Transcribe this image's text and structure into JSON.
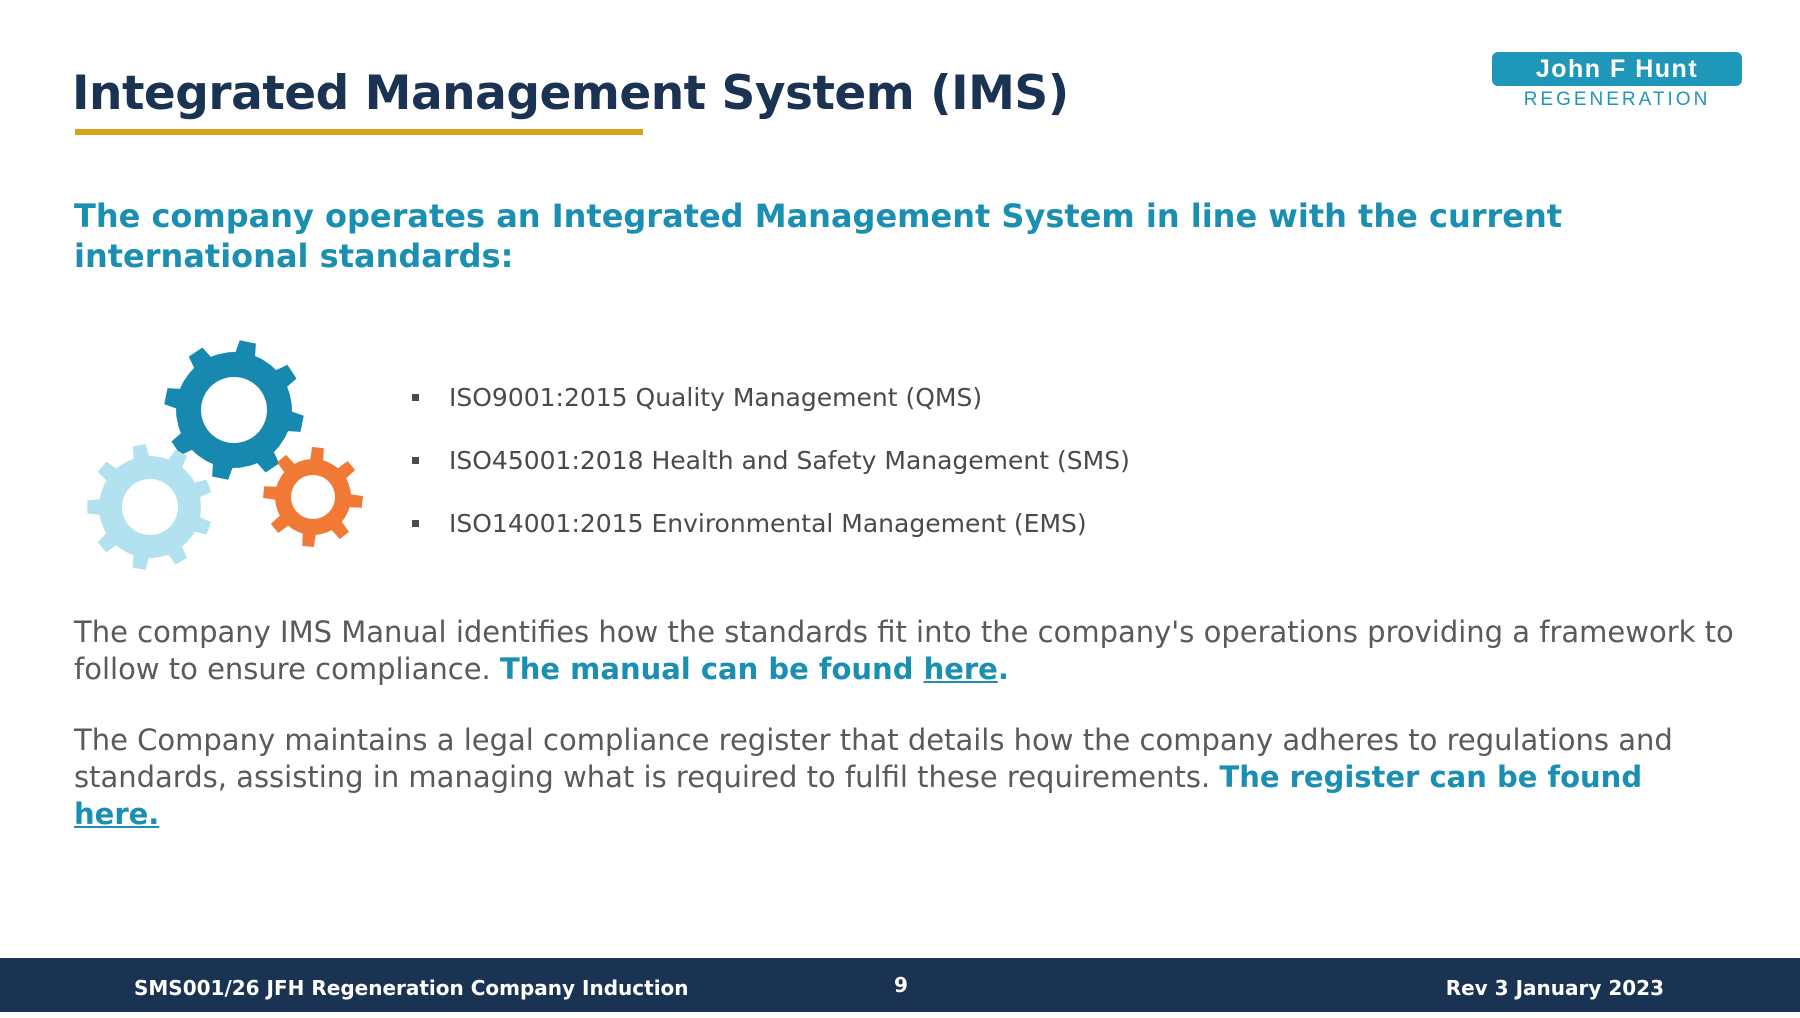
{
  "slide": {
    "title": "Integrated Management System (IMS)",
    "intro": "The company operates an Integrated Management System in line with the current international standards:"
  },
  "logo": {
    "name": "John F Hunt",
    "tagline": "REGENERATION"
  },
  "standards": [
    "ISO9001:2015 Quality Management (QMS)",
    "ISO45001:2018 Health and Safety Management (SMS)",
    "ISO14001:2015 Environmental Management (EMS)"
  ],
  "manual": {
    "text": "The company IMS Manual identifies how the standards fit into the company's operations providing a framework to follow to ensure compliance. ",
    "emphasis": "The manual can be found ",
    "link": "here",
    "end": "."
  },
  "register": {
    "text": "The Company maintains a legal compliance register that details how the company adheres to regulations and standards, assisting in managing what is required to fulfil these requirements. ",
    "emphasis": "The register can be found ",
    "link": "here."
  },
  "footer": {
    "document": "SMS001/26 JFH Regeneration Company Induction",
    "page": "9",
    "revision": "Rev 3 January 2023"
  },
  "colors": {
    "navy": "#1a3352",
    "teal": "#1a8fb2",
    "gold": "#d8a31a",
    "gear_dark": "#1789b0",
    "gear_light": "#b2e2ef",
    "gear_orange": "#f07a35"
  },
  "icons": [
    "large-gear-icon",
    "small-gear-icon",
    "orange-gear-icon"
  ]
}
